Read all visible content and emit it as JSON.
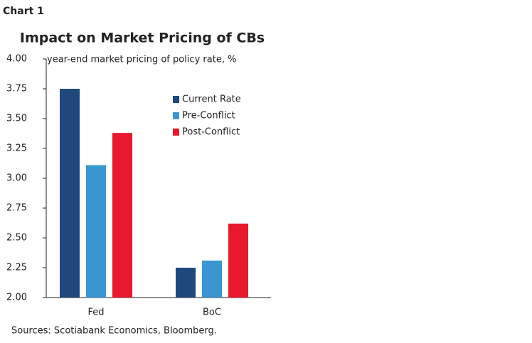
{
  "chart_data": {
    "type": "bar",
    "label": "Chart 1",
    "title": "Impact on Market Pricing of CBs",
    "y_label": "year-end market pricing of policy rate, %",
    "source": "Sources: Scotiabank Economics, Bloomberg.",
    "categories": [
      "Fed",
      "BoC"
    ],
    "series": [
      {
        "name": "Current Rate",
        "color": "#1f497d",
        "values": [
          3.75,
          2.25
        ]
      },
      {
        "name": "Pre-Conflict",
        "color": "#3a96d0",
        "values": [
          3.11,
          2.31
        ]
      },
      {
        "name": "Post-Conflict",
        "color": "#e8192c",
        "values": [
          3.38,
          2.62
        ]
      }
    ],
    "ylim": [
      2,
      4
    ],
    "yticks": [
      {
        "value": 2,
        "label": "2.00"
      },
      {
        "value": 2.25,
        "label": "2.25"
      },
      {
        "value": 2.5,
        "label": "2.50"
      },
      {
        "value": 2.75,
        "label": "2.75"
      },
      {
        "value": 3,
        "label": "3.00"
      },
      {
        "value": 3.25,
        "label": "3.25"
      },
      {
        "value": 3.5,
        "label": "3.50"
      },
      {
        "value": 3.75,
        "label": "3.75"
      },
      {
        "value": 4,
        "label": "4.00"
      }
    ],
    "grid": false
  }
}
